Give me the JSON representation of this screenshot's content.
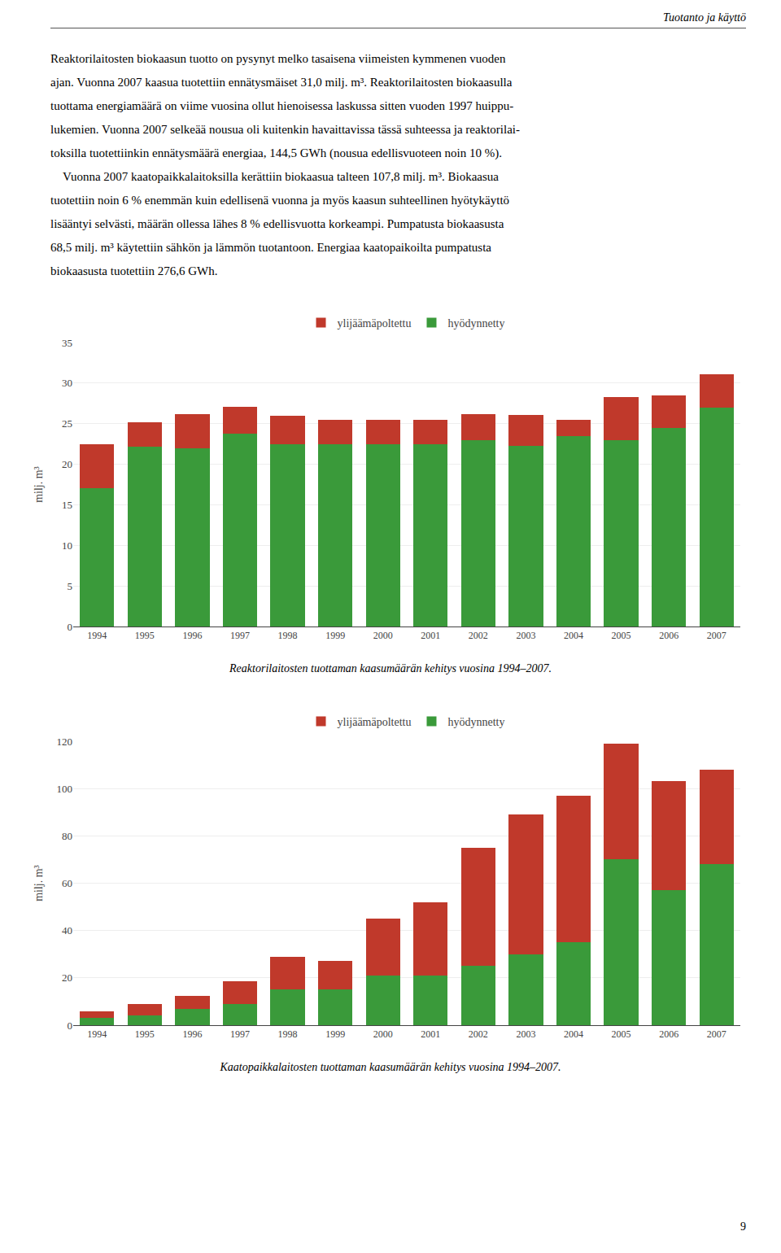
{
  "header": "Tuotanto ja käyttö",
  "text_lines": [
    "Reaktorilaitosten biokaasun tuotto on pysynyt melko tasaisena viimeisten kymmenen vuoden",
    "ajan. Vuonna 2007 kaasua tuotettiin ennätysmäiset 31,0 milj. m³. Reaktorilaitosten biokaasulla",
    "tuottama energiamäärä on viime vuosina ollut hienoisessa laskussa sitten vuoden 1997 huippu-",
    "lukemien. Vuonna 2007 selkeää nousua oli kuitenkin havaittavissa tässä suhteessa ja reaktorilai-",
    "toksilla tuotettiinkin ennätysmäärä energiaa, 144,5 GWh (nousua edellisvuoteen noin 10 %).",
    "    Vuonna 2007 kaatopaikkalaitoksilla kerättiin biokaasua talteen 107,8 milj. m³. Biokaasua",
    "tuotettiin noin 6 % enemmän kuin edellisenä vuonna ja myös kaasun suhteellinen hyötykäyttö",
    "lisääntyi selvästi, määrän ollessa lähes 8 % edellisvuotta korkeampi. Pumpatusta biokaasusta",
    "68,5 milj. m³ käytettiin sähkön ja lämmön tuotantoon. Energiaa kaatopaikoilta pumpatusta",
    "biokaasusta tuotettiin 276,6 GWh."
  ],
  "page_number": "9",
  "chart_data": [
    {
      "type": "bar",
      "title": "Reaktorilaitosten tuottaman kaasumäärän kehitys vuosina 1994–2007.",
      "ylabel": "milj. m³",
      "categories": [
        "1994",
        "1995",
        "1996",
        "1997",
        "1998",
        "1999",
        "2000",
        "2001",
        "2002",
        "2003",
        "2004",
        "2005",
        "2006",
        "2007"
      ],
      "series": [
        {
          "name": "hyödynnetty",
          "color": "#3a9a3a",
          "values": [
            17.0,
            22.2,
            22.0,
            23.8,
            22.5,
            22.5,
            22.5,
            22.5,
            23.0,
            22.3,
            23.5,
            23.0,
            24.5,
            27.0
          ]
        },
        {
          "name": "ylijäämäpoltettu",
          "color": "#c0392b",
          "values": [
            5.5,
            3.0,
            4.2,
            3.3,
            3.5,
            3.0,
            3.0,
            3.0,
            3.2,
            3.8,
            2.0,
            5.3,
            4.0,
            4.1
          ]
        }
      ],
      "stacked": true,
      "ylim": [
        0,
        35
      ],
      "yticks": [
        0,
        5,
        10,
        15,
        20,
        25,
        30,
        35
      ],
      "grid": true,
      "legend": "top"
    },
    {
      "type": "bar",
      "title": "Kaatopaikkalaitosten tuottaman kaasumäärän kehitys vuosina 1994–2007.",
      "ylabel": "milj. m³",
      "categories": [
        "1994",
        "1995",
        "1996",
        "1997",
        "1998",
        "1999",
        "2000",
        "2001",
        "2002",
        "2003",
        "2004",
        "2005",
        "2006",
        "2007"
      ],
      "series": [
        {
          "name": "hyödynnetty",
          "color": "#3a9a3a",
          "values": [
            3.0,
            4.0,
            7.0,
            9.0,
            15.0,
            15.0,
            21.0,
            21.0,
            25.0,
            30.0,
            35.0,
            70.0,
            57.0,
            68.0
          ]
        },
        {
          "name": "ylijäämäpoltettu",
          "color": "#c0392b",
          "values": [
            3.0,
            5.0,
            5.5,
            9.5,
            14.0,
            12.0,
            24.0,
            31.0,
            50.0,
            59.0,
            62.0,
            49.0,
            46.0,
            40.0
          ]
        }
      ],
      "stacked": true,
      "ylim": [
        0,
        120
      ],
      "yticks": [
        0,
        20,
        40,
        60,
        80,
        100,
        120
      ],
      "grid": true,
      "legend": "top"
    }
  ]
}
